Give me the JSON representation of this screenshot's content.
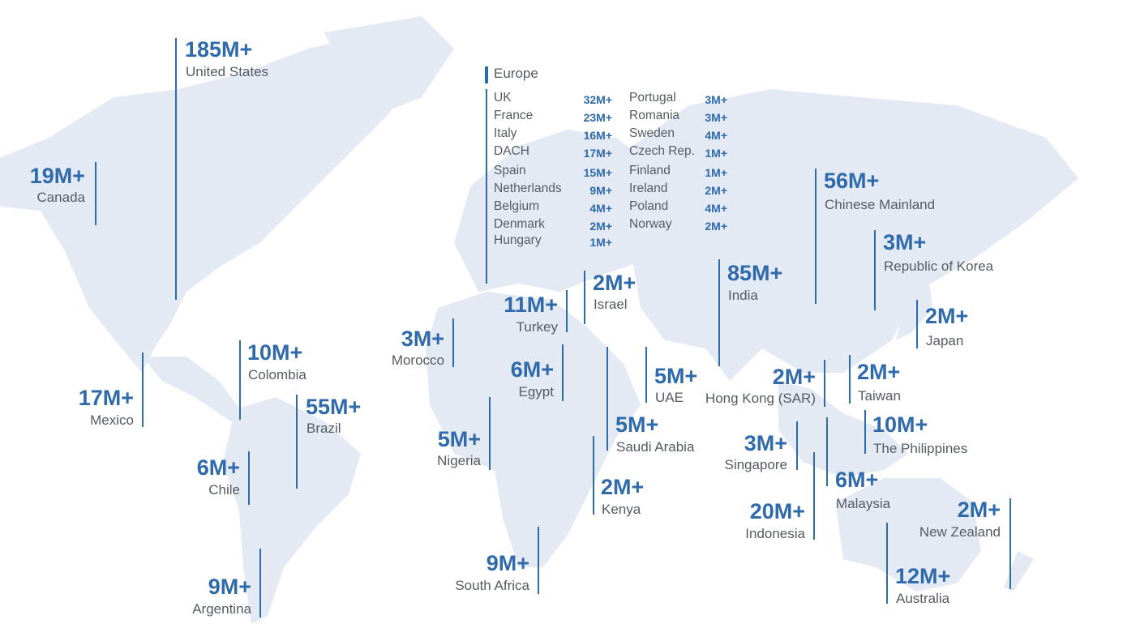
{
  "europe": {
    "title": "Europe",
    "countries": [
      {
        "name": "UK",
        "value": "32M+"
      },
      {
        "name": "France",
        "value": "23M+"
      },
      {
        "name": "Italy",
        "value": "16M+"
      },
      {
        "name": "DACH",
        "value": "17M+"
      },
      {
        "name": "Spain",
        "value": "15M+"
      },
      {
        "name": "Netherlands",
        "value": "9M+"
      },
      {
        "name": "Belgium",
        "value": "4M+"
      },
      {
        "name": "Denmark",
        "value": "2M+"
      },
      {
        "name": "Hungary",
        "value": "1M+"
      },
      {
        "name": "Portugal",
        "value": "3M+"
      },
      {
        "name": "Romania",
        "value": "3M+"
      },
      {
        "name": "Sweden",
        "value": "4M+"
      },
      {
        "name": "Czech Rep.",
        "value": "1M+"
      },
      {
        "name": "Finland",
        "value": "1M+"
      },
      {
        "name": "Ireland",
        "value": "2M+"
      },
      {
        "name": "Poland",
        "value": "4M+"
      },
      {
        "name": "Norway",
        "value": "2M+"
      }
    ]
  },
  "markers": [
    {
      "value": "185M+",
      "name": "United States"
    },
    {
      "value": "19M+",
      "name": "Canada"
    },
    {
      "value": "17M+",
      "name": "Mexico"
    },
    {
      "value": "10M+",
      "name": "Colombia"
    },
    {
      "value": "55M+",
      "name": "Brazil"
    },
    {
      "value": "6M+",
      "name": "Chile"
    },
    {
      "value": "9M+",
      "name": "Argentina"
    },
    {
      "value": "3M+",
      "name": "Morocco"
    },
    {
      "value": "11M+",
      "name": "Turkey"
    },
    {
      "value": "2M+",
      "name": "Israel"
    },
    {
      "value": "6M+",
      "name": "Egypt"
    },
    {
      "value": "5M+",
      "name": "Nigeria"
    },
    {
      "value": "5M+",
      "name": "Saudi Arabia"
    },
    {
      "value": "2M+",
      "name": "Kenya"
    },
    {
      "value": "9M+",
      "name": "South Africa"
    },
    {
      "value": "5M+",
      "name": "UAE"
    },
    {
      "value": "85M+",
      "name": "India"
    },
    {
      "value": "56M+",
      "name": "Chinese Mainland"
    },
    {
      "value": "3M+",
      "name": "Republic of Korea"
    },
    {
      "value": "2M+",
      "name": "Japan"
    },
    {
      "value": "2M+",
      "name": "Hong Kong (SAR)"
    },
    {
      "value": "2M+",
      "name": "Taiwan"
    },
    {
      "value": "10M+",
      "name": "The Philippines"
    },
    {
      "value": "3M+",
      "name": "Singapore"
    },
    {
      "value": "6M+",
      "name": "Malaysia"
    },
    {
      "value": "20M+",
      "name": "Indonesia"
    },
    {
      "value": "12M+",
      "name": "Australia"
    },
    {
      "value": "2M+",
      "name": "New Zealand"
    }
  ]
}
